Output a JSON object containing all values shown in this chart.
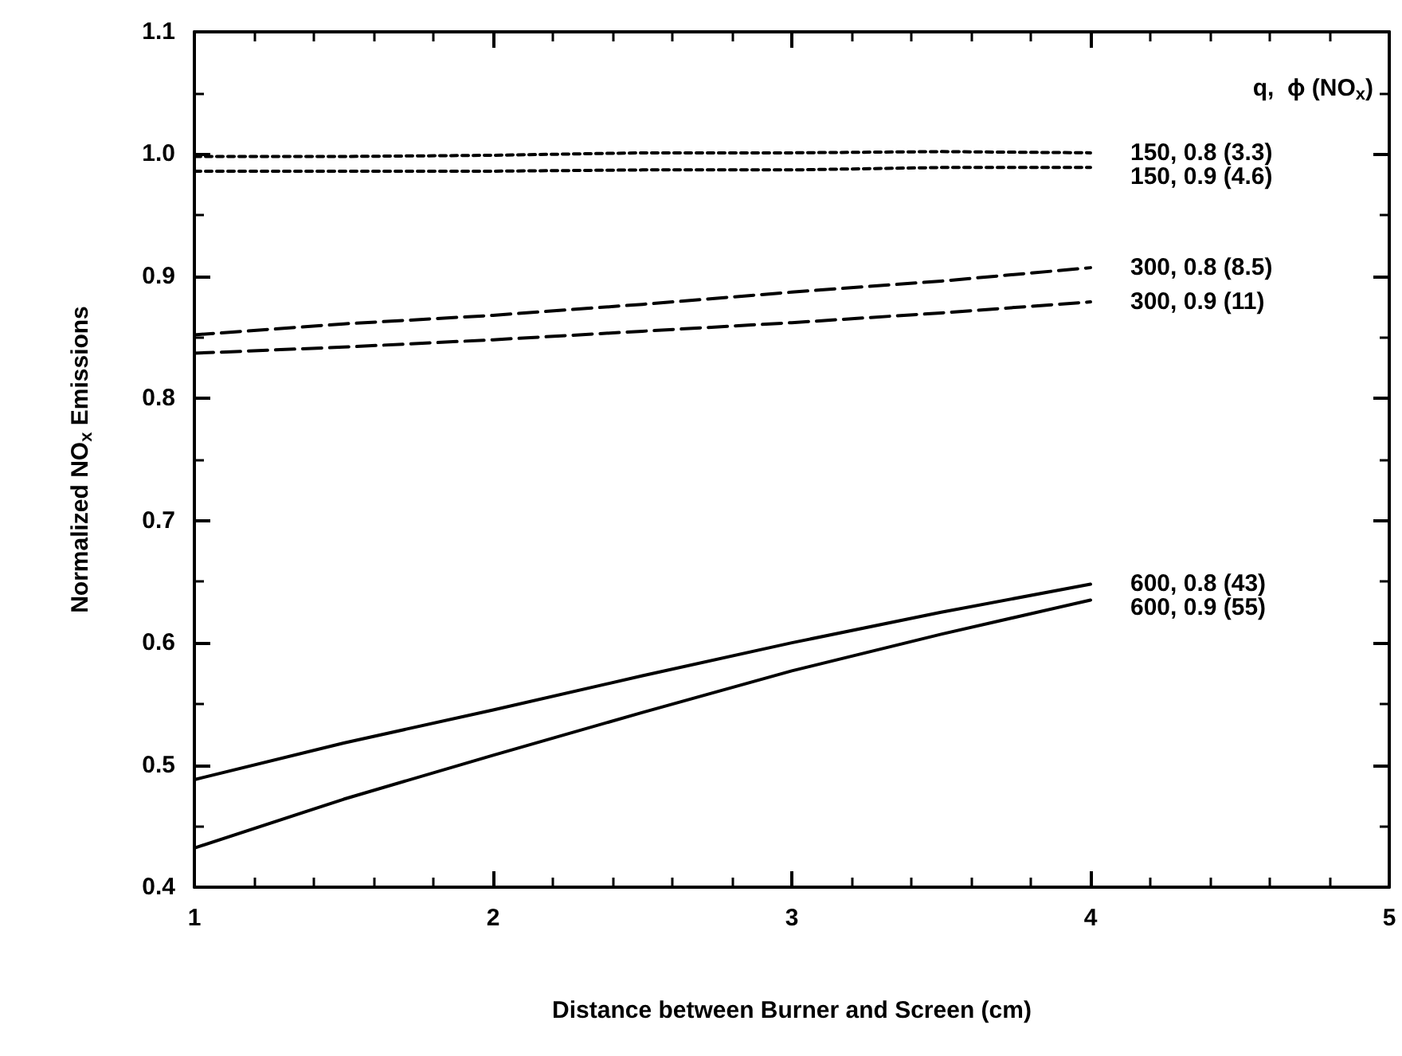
{
  "chart_data": {
    "type": "line",
    "xlabel": "Distance between Burner and Screen (cm)",
    "ylabel": "Normalized NO$_{x}$ Emissions",
    "legend_title": "q,  ϕ (NO$_{x}$)",
    "xlim": [
      1,
      5
    ],
    "xticks": [
      1,
      2,
      3,
      4,
      5
    ],
    "ylim": [
      0.4,
      1.1
    ],
    "yticks": [
      0.4,
      0.5,
      0.6,
      0.7,
      0.8,
      0.9,
      {
        "value": 1.0,
        "label": "1.0"
      },
      1.1
    ],
    "grid": false,
    "marker": "none",
    "x": [
      1,
      1.5,
      2,
      2.5,
      3,
      3.5,
      4
    ],
    "series": [
      {
        "name": "150, 0.8 (3.3)",
        "color": "#000000",
        "line_style": "dotted",
        "values": [
          0.998,
          0.998,
          0.999,
          1.001,
          1.001,
          1.002,
          1.001
        ]
      },
      {
        "name": "150, 0.9 (4.6)",
        "color": "#000000",
        "line_style": "dotted",
        "values": [
          0.986,
          0.986,
          0.986,
          0.987,
          0.987,
          0.989,
          0.989
        ]
      },
      {
        "name": "300, 0.8 (8.5)",
        "color": "#000000",
        "line_style": "dashed",
        "values": [
          0.852,
          0.861,
          0.868,
          0.877,
          0.887,
          0.896,
          0.907
        ]
      },
      {
        "name": "300, 0.9 (11)",
        "color": "#000000",
        "line_style": "dashed",
        "values": [
          0.837,
          0.842,
          0.848,
          0.855,
          0.862,
          0.87,
          0.879
        ]
      },
      {
        "name": "600, 0.8 (43)",
        "color": "#000000",
        "line_style": "solid",
        "values": [
          0.488,
          0.518,
          0.545,
          0.573,
          0.6,
          0.625,
          0.648
        ]
      },
      {
        "name": "600, 0.9 (55)",
        "color": "#000000",
        "line_style": "solid",
        "values": [
          0.432,
          0.472,
          0.508,
          0.543,
          0.577,
          0.607,
          0.635
        ]
      }
    ]
  }
}
